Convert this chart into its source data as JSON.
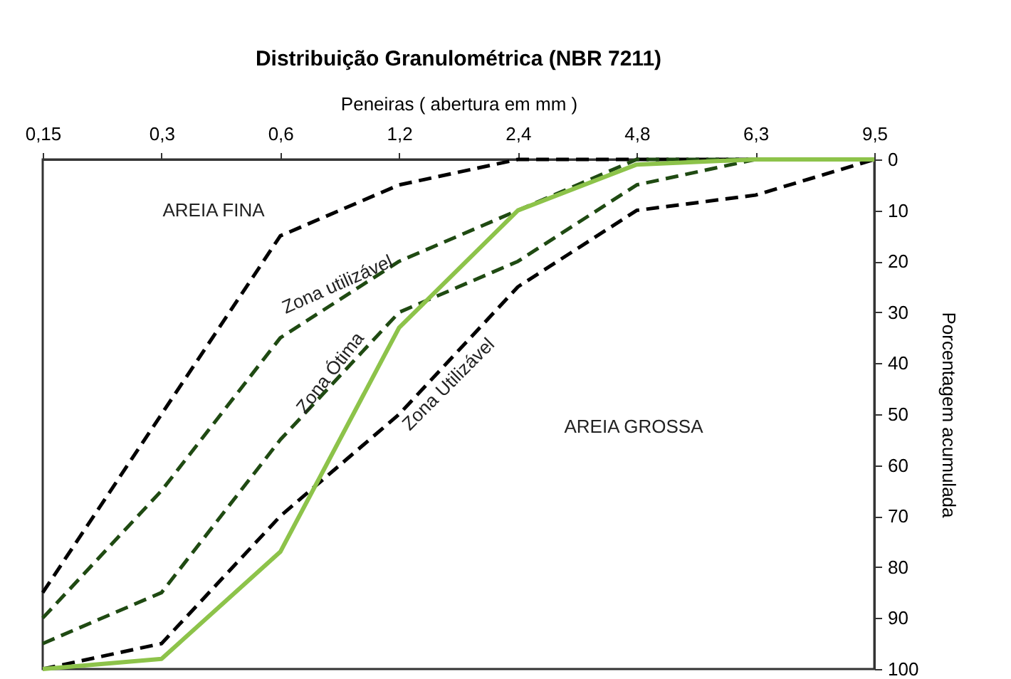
{
  "chart_data": {
    "type": "line",
    "title": "Distribuição Granulométrica (NBR 7211)",
    "xlabel": "Peneiras ( abertura em mm )",
    "ylabel": "Porcentagem acumulada",
    "categories": [
      "0,15",
      "0,3",
      "0,6",
      "1,2",
      "2,4",
      "4,8",
      "6,3",
      "9,5"
    ],
    "series": [
      {
        "color": "#000000",
        "line_style": "dashed",
        "values": [
          85,
          50,
          15,
          5,
          0,
          0,
          0,
          0
        ]
      },
      {
        "color": "#1f4a12",
        "line_style": "dashed",
        "values": [
          90,
          65,
          35,
          20,
          10,
          0,
          0,
          0
        ]
      },
      {
        "color": "#1f4a12",
        "line_style": "dashed",
        "values": [
          95,
          85,
          55,
          30,
          20,
          5,
          0,
          0
        ]
      },
      {
        "color": "#000000",
        "line_style": "dashed",
        "values": [
          100,
          95,
          70,
          50,
          25,
          10,
          7,
          0
        ]
      },
      {
        "color": "#8dc34a",
        "line_style": "solid",
        "values": [
          100,
          98,
          77,
          33,
          10,
          1,
          0,
          0
        ]
      }
    ],
    "ylim": [
      100,
      0
    ],
    "yticks": [
      0,
      10,
      20,
      30,
      40,
      50,
      60,
      70,
      80,
      90,
      100
    ],
    "grid": false,
    "annotations": [
      "AREIA FINA",
      "Zona utilizável",
      "Zona Ótima",
      "Zona Utilizável",
      "AREIA GROSSA"
    ]
  }
}
